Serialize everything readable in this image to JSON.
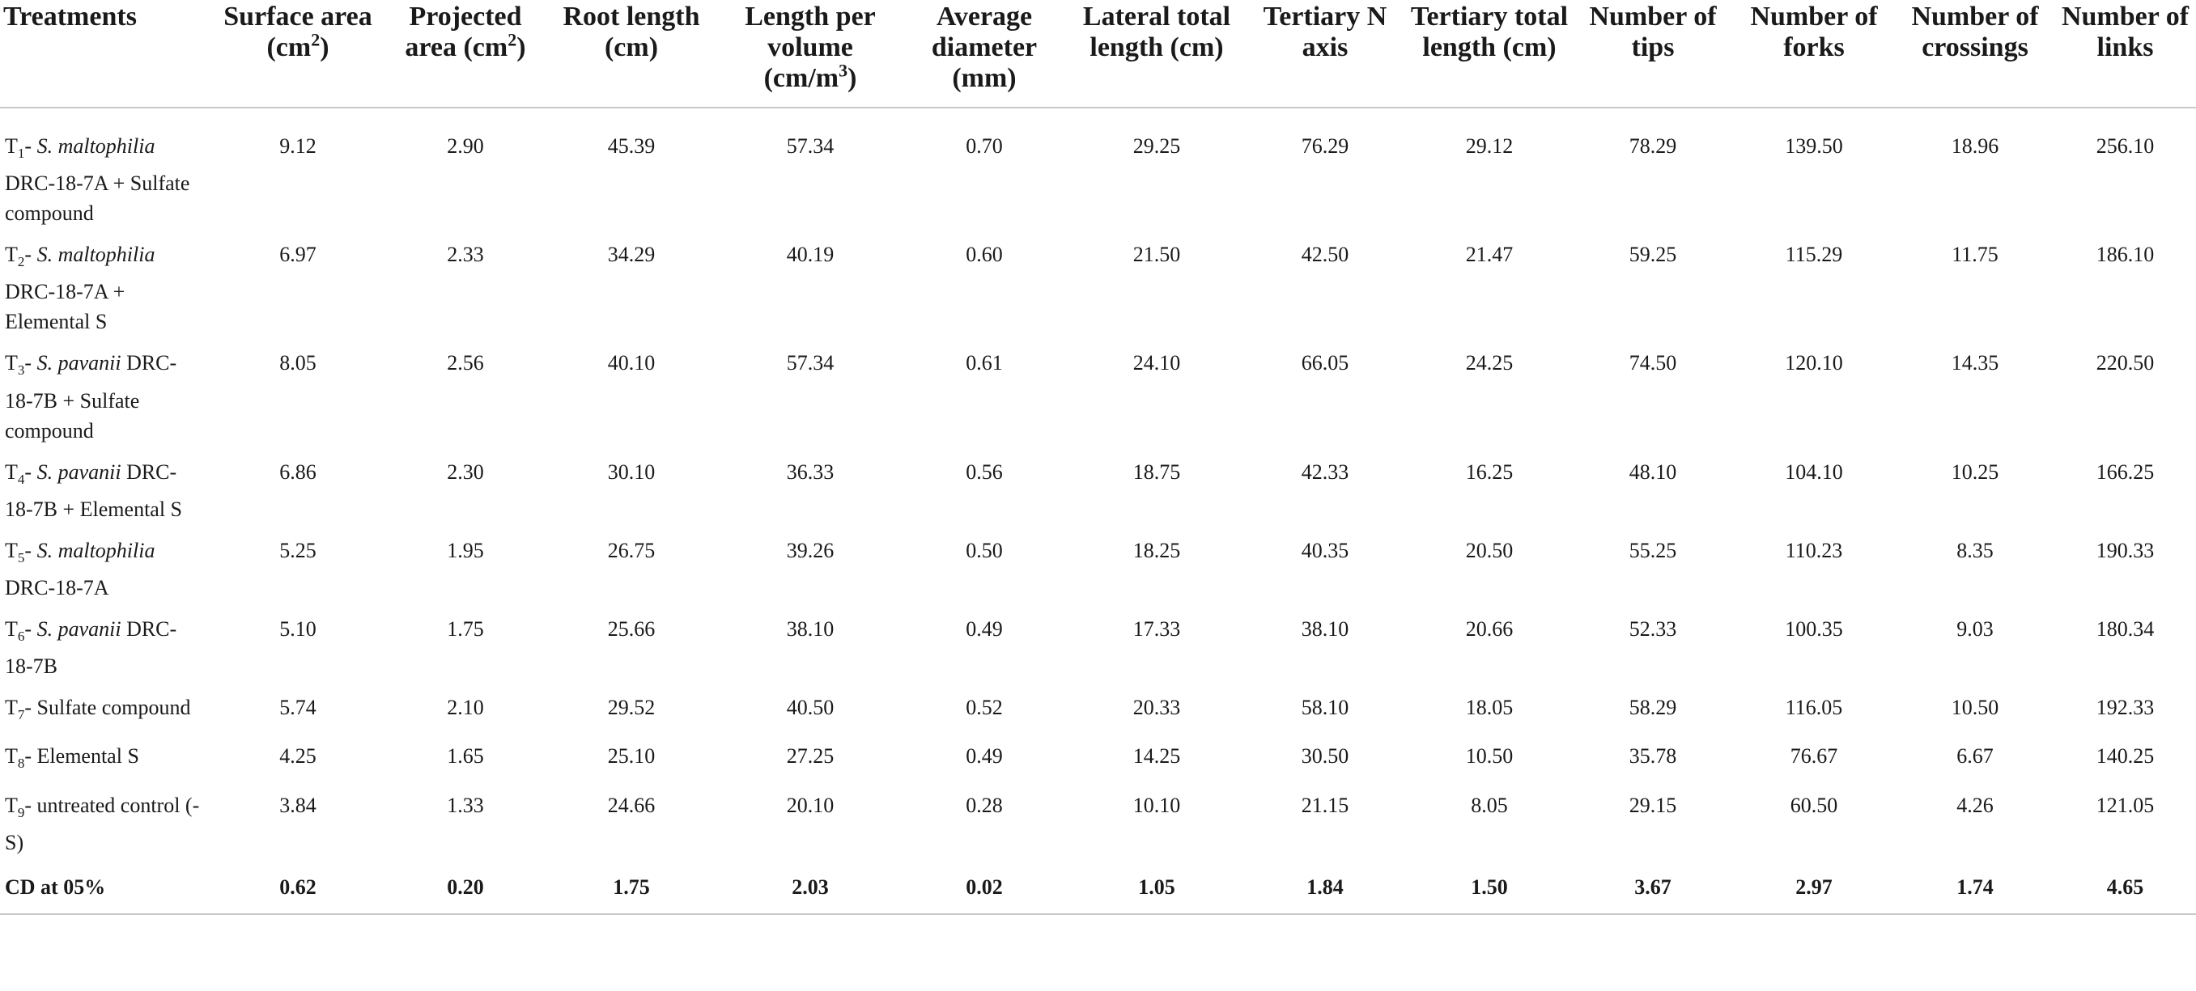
{
  "headers": [
    {
      "main": "Treatments"
    },
    {
      "main": "Surface area (cm",
      "sup": "2",
      "tail": ")"
    },
    {
      "main": "Projected area (cm",
      "sup": "2",
      "tail": ")"
    },
    {
      "main": "Root length (cm)"
    },
    {
      "main": "Length per volume (cm/m",
      "sup": "3",
      "tail": ")"
    },
    {
      "main": "Average diameter (mm)"
    },
    {
      "main": "Lateral total length (cm)"
    },
    {
      "main": "Tertiary N axis"
    },
    {
      "main": "Tertiary total length (cm)"
    },
    {
      "main": "Number of tips"
    },
    {
      "main": "Number of forks"
    },
    {
      "main": "Number of crossings"
    },
    {
      "main": "Number of links"
    }
  ],
  "rows": [
    {
      "t": "T",
      "sub": "1",
      "pre": "- ",
      "ital": "S. maltophilia",
      "rest": " DRC-18-7A + Sulfate compound",
      "values": [
        "9.12",
        "2.90",
        "45.39",
        "57.34",
        "0.70",
        "29.25",
        "76.29",
        "29.12",
        "78.29",
        "139.50",
        "18.96",
        "256.10"
      ]
    },
    {
      "t": "T",
      "sub": "2",
      "pre": "- ",
      "ital": "S. maltophilia",
      "rest": " DRC-18-7A + Elemental S",
      "values": [
        "6.97",
        "2.33",
        "34.29",
        "40.19",
        "0.60",
        "21.50",
        "42.50",
        "21.47",
        "59.25",
        "115.29",
        "11.75",
        "186.10"
      ]
    },
    {
      "t": "T",
      "sub": "3",
      "pre": "- ",
      "ital": "S. pavanii",
      "rest": " DRC-18-7B + Sulfate compound",
      "values": [
        "8.05",
        "2.56",
        "40.10",
        "57.34",
        "0.61",
        "24.10",
        "66.05",
        "24.25",
        "74.50",
        "120.10",
        "14.35",
        "220.50"
      ]
    },
    {
      "t": "T",
      "sub": "4",
      "pre": "- ",
      "ital": "S. pavanii",
      "rest": " DRC-18-7B + Elemental S",
      "values": [
        "6.86",
        "2.30",
        "30.10",
        "36.33",
        "0.56",
        "18.75",
        "42.33",
        "16.25",
        "48.10",
        "104.10",
        "10.25",
        "166.25"
      ]
    },
    {
      "t": "T",
      "sub": "5",
      "pre": "- ",
      "ital": "S. maltophilia",
      "rest": " DRC-18-7A",
      "values": [
        "5.25",
        "1.95",
        "26.75",
        "39.26",
        "0.50",
        "18.25",
        "40.35",
        "20.50",
        "55.25",
        "110.23",
        "8.35",
        "190.33"
      ]
    },
    {
      "t": "T",
      "sub": "6",
      "pre": "- ",
      "ital": "S. pavanii",
      "rest": " DRC-18-7B",
      "values": [
        "5.10",
        "1.75",
        "25.66",
        "38.10",
        "0.49",
        "17.33",
        "38.10",
        "20.66",
        "52.33",
        "100.35",
        "9.03",
        "180.34"
      ]
    },
    {
      "t": "T",
      "sub": "7",
      "pre": "- Sulfate compound",
      "ital": "",
      "rest": "",
      "values": [
        "5.74",
        "2.10",
        "29.52",
        "40.50",
        "0.52",
        "20.33",
        "58.10",
        "18.05",
        "58.29",
        "116.05",
        "10.50",
        "192.33"
      ]
    },
    {
      "t": "T",
      "sub": "8",
      "pre": "- Elemental S",
      "ital": "",
      "rest": "",
      "values": [
        "4.25",
        "1.65",
        "25.10",
        "27.25",
        "0.49",
        "14.25",
        "30.50",
        "10.50",
        "35.78",
        "76.67",
        "6.67",
        "140.25"
      ]
    },
    {
      "t": "T",
      "sub": "9",
      "pre": "- untreated control (-S)",
      "ital": "",
      "rest": "",
      "values": [
        "3.84",
        "1.33",
        "24.66",
        "20.10",
        "0.28",
        "10.10",
        "21.15",
        "8.05",
        "29.15",
        "60.50",
        "4.26",
        "121.05"
      ]
    }
  ],
  "cd_row": {
    "label": "CD at 05%",
    "values": [
      "0.62",
      "0.20",
      "1.75",
      "2.03",
      "0.02",
      "1.05",
      "1.84",
      "1.50",
      "3.67",
      "2.97",
      "1.74",
      "4.65"
    ]
  }
}
